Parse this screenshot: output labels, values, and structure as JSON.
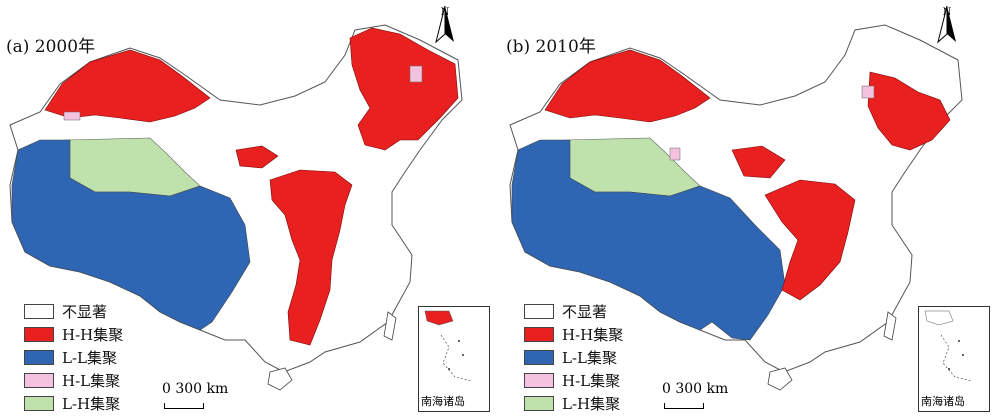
{
  "panels": [
    {
      "title": "(a) 2000年",
      "north_label": "N",
      "inset_label": "南海诸岛",
      "scale_label": "0 300 km"
    },
    {
      "title": "(b) 2010年",
      "north_label": "N",
      "inset_label": "南海诸岛",
      "scale_label": "0 300 km"
    }
  ],
  "legend": [
    {
      "label": "不显著",
      "color": "#ffffff"
    },
    {
      "label": "H-H集聚",
      "color": "#e8201f"
    },
    {
      "label": "L-L集聚",
      "color": "#2e66b4"
    },
    {
      "label": "H-L集聚",
      "color": "#f2c2df"
    },
    {
      "label": "L-H集聚",
      "color": "#bfe2ad"
    }
  ]
}
